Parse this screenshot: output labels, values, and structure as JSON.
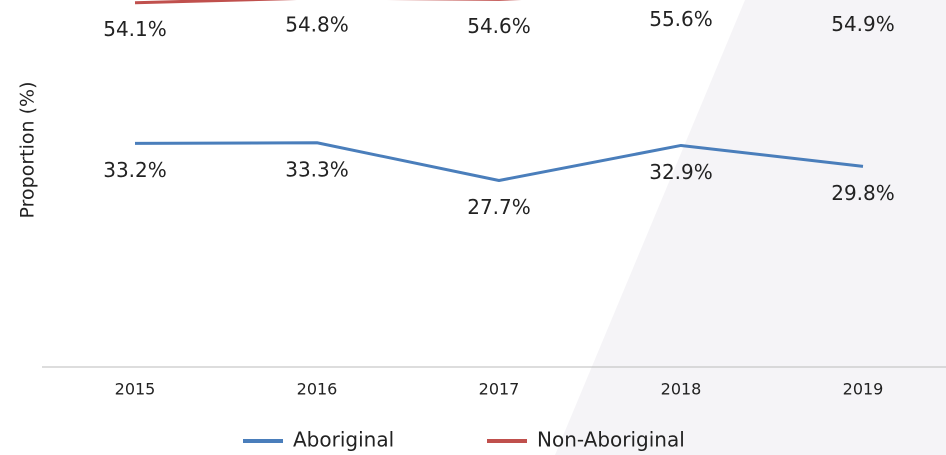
{
  "chart_data": {
    "type": "line",
    "y_label": "Proportion (%)",
    "categories": [
      "2015",
      "2016",
      "2017",
      "2018",
      "2019"
    ],
    "series": [
      {
        "name": "Aboriginal",
        "color": "#4a7ebb",
        "values": [
          33.2,
          33.3,
          27.7,
          32.9,
          29.8
        ],
        "value_labels": [
          "33.2%",
          "33.3%",
          "27.7%",
          "32.9%",
          "29.8%"
        ]
      },
      {
        "name": "Non-Aboriginal",
        "color": "#c0504d",
        "values": [
          54.1,
          54.8,
          54.6,
          55.6,
          54.9
        ],
        "value_labels": [
          "54.1%",
          "54.8%",
          "54.6%",
          "55.6%",
          "54.9%"
        ]
      }
    ],
    "ylim": [
      0,
      54.5
    ],
    "legend": "bottom"
  }
}
